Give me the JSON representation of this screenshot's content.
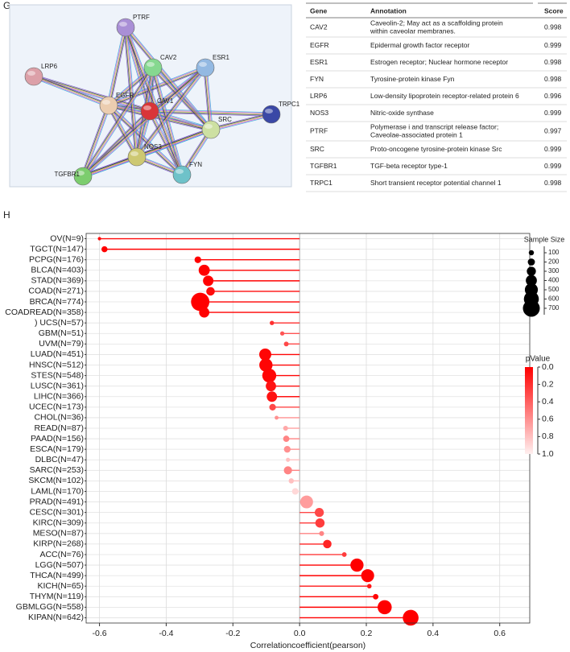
{
  "panel_g": {
    "label": "G",
    "network": {
      "nodes": [
        "PTRF",
        "CAV2",
        "ESR1",
        "LRP6",
        "EGFR",
        "CAV1",
        "TRPC1",
        "SRC",
        "NOS3",
        "TGFBR1",
        "FYN"
      ]
    },
    "table": {
      "headers": [
        "Gene",
        "Annotation",
        "Score"
      ],
      "rows": [
        {
          "gene": "CAV2",
          "annotation": [
            "Caveolin-2; May act as a scaffolding protein",
            "within caveolar membranes."
          ],
          "score": 0.998
        },
        {
          "gene": "EGFR",
          "annotation": [
            "Epidermal growth factor receptor"
          ],
          "score": 0.999
        },
        {
          "gene": "ESR1",
          "annotation": [
            "Estrogen receptor; Nuclear hormone receptor"
          ],
          "score": 0.998
        },
        {
          "gene": "FYN",
          "annotation": [
            "Tyrosine-protein kinase Fyn"
          ],
          "score": 0.998
        },
        {
          "gene": "LRP6",
          "annotation": [
            "Low-density lipoprotein receptor-related protein 6"
          ],
          "score": 0.996
        },
        {
          "gene": "NOS3",
          "annotation": [
            "Nitric-oxide synthase"
          ],
          "score": 0.999
        },
        {
          "gene": "PTRF",
          "annotation": [
            "Polymerase i and transcript release factor;",
            "Caveolae-associated protein 1"
          ],
          "score": 0.997
        },
        {
          "gene": "SRC",
          "annotation": [
            "Proto-oncogene tyrosine-protein kinase Src"
          ],
          "score": 0.999
        },
        {
          "gene": "TGFBR1",
          "annotation": [
            "TGF-beta receptor type-1"
          ],
          "score": 0.999
        },
        {
          "gene": "TRPC1",
          "annotation": [
            "Short transient receptor potential channel 1"
          ],
          "score": 0.998
        }
      ]
    }
  },
  "chart_data": {
    "type": "lollipop",
    "panel_label": "H",
    "x_label": "Correlationcoefficient(pearson)",
    "categories": [
      "OV(N=9)",
      "TGCT(N=147)",
      "PCPG(N=176)",
      "BLCA(N=403)",
      "STAD(N=369)",
      "COAD(N=271)",
      "BRCA(N=774)",
      "COADREAD(N=358)",
      ") UCS(N=57)",
      "GBM(N=51)",
      "UVM(N=79)",
      "LUAD(N=451)",
      "HNSC(N=512)",
      "STES(N=548)",
      "LUSC(N=361)",
      "LIHC(N=366)",
      "UCEC(N=173)",
      "CHOL(N=36)",
      "READ(N=87)",
      "PAAD(N=156)",
      "ESCA(N=179)",
      "DLBC(N=47)",
      "SARC(N=253)",
      "SKCM(N=102)",
      "LAML(N=170)",
      "PRAD(N=491)",
      "CESC(N=301)",
      "KIRC(N=309)",
      "MESO(N=87)",
      "KIRP(N=268)",
      "ACC(N=76)",
      "LGG(N=507)",
      "THCA(N=499)",
      "KICH(N=65)",
      "THYM(N=119)",
      "GBMLGG(N=558)",
      "KIPAN(N=642)"
    ],
    "values": [
      -0.6,
      -0.585,
      -0.305,
      -0.286,
      -0.274,
      -0.267,
      -0.298,
      -0.286,
      -0.083,
      -0.052,
      -0.04,
      -0.103,
      -0.101,
      -0.091,
      -0.086,
      -0.083,
      -0.081,
      -0.069,
      -0.042,
      -0.04,
      -0.037,
      -0.035,
      -0.035,
      -0.025,
      -0.013,
      0.021,
      0.059,
      0.061,
      0.066,
      0.083,
      0.134,
      0.172,
      0.204,
      0.209,
      0.228,
      0.255,
      0.333
    ],
    "sizes": [
      9,
      147,
      176,
      403,
      369,
      271,
      774,
      358,
      57,
      51,
      79,
      451,
      512,
      548,
      361,
      366,
      173,
      36,
      87,
      156,
      179,
      47,
      253,
      102,
      170,
      491,
      301,
      309,
      87,
      268,
      76,
      507,
      499,
      65,
      119,
      558,
      642
    ],
    "pvalues": [
      0.05,
      0.0,
      0.0,
      0.0,
      0.0,
      0.05,
      0.0,
      0.01,
      0.2,
      0.35,
      0.3,
      0.02,
      0.02,
      0.02,
      0.08,
      0.07,
      0.3,
      0.6,
      0.7,
      0.55,
      0.6,
      0.8,
      0.55,
      0.8,
      0.9,
      0.65,
      0.3,
      0.25,
      0.55,
      0.15,
      0.25,
      0.0,
      0.0,
      0.1,
      0.02,
      0.0,
      0.0
    ],
    "xlim": [
      -0.64,
      0.69
    ],
    "xticks": [
      -0.6,
      -0.4,
      -0.2,
      {
        "value": 0,
        "label": "0.0"
      },
      0.2,
      0.4,
      0.6
    ],
    "grid": true,
    "size_legend": {
      "title": "Sample Size",
      "ticks": [
        100,
        200,
        300,
        400,
        500,
        600,
        700
      ]
    },
    "color_legend": {
      "title": "pValue",
      "lim": [
        0,
        1
      ],
      "ticks": [
        {
          "value": 0,
          "label": "0.0"
        },
        0.2,
        0.4,
        0.6,
        0.8,
        {
          "value": 1,
          "label": "1.0"
        }
      ]
    }
  }
}
